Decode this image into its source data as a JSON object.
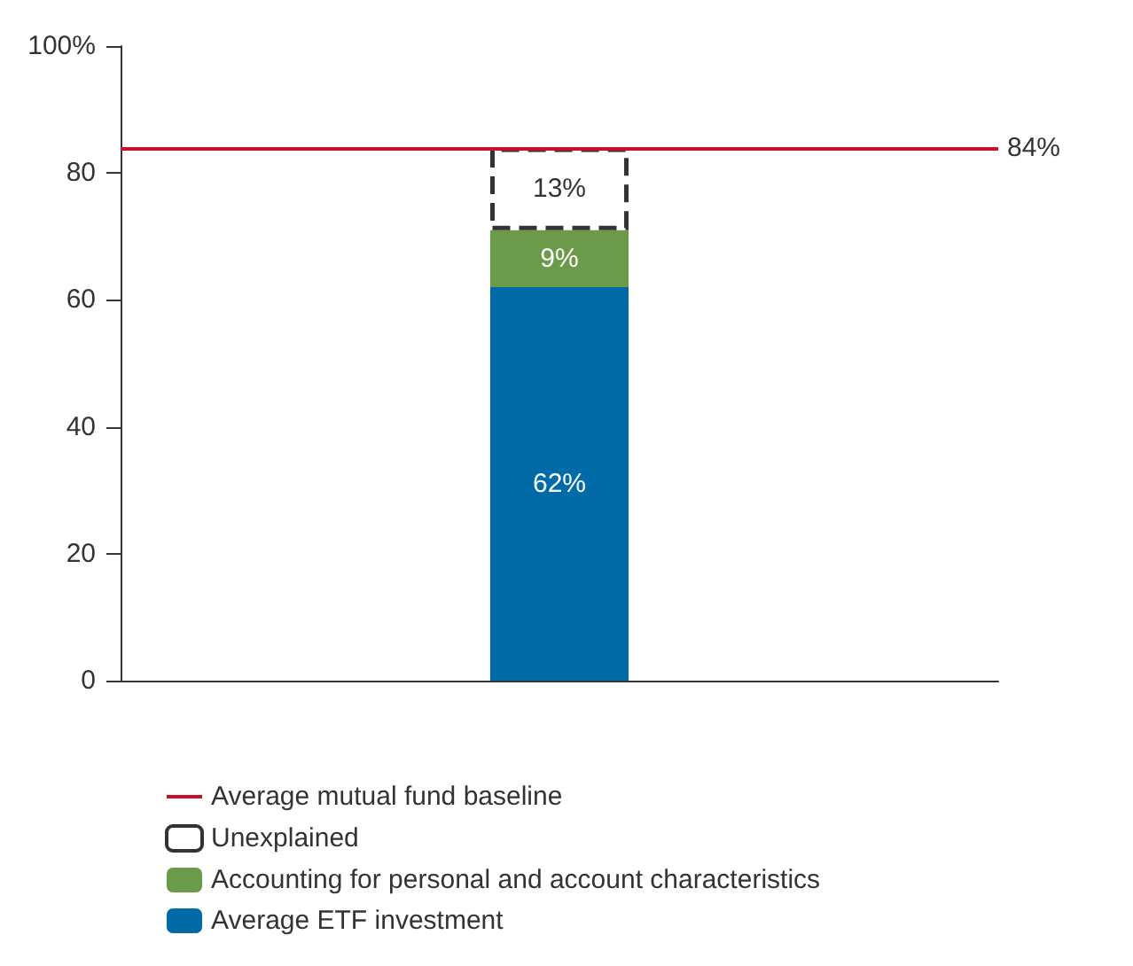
{
  "chart_data": {
    "type": "bar",
    "stacked": true,
    "categories": [
      null
    ],
    "series": [
      {
        "name": "Average ETF investment",
        "color": "#006ba6",
        "values": [
          62
        ],
        "value_labels": [
          "62%"
        ]
      },
      {
        "name": "Accounting for personal and account characteristics",
        "color": "#6a9a4a",
        "values": [
          9
        ],
        "value_labels": [
          "9%"
        ]
      },
      {
        "name": "Unexplained",
        "color": "#ffffff",
        "line_style": "dashed",
        "values": [
          13
        ],
        "value_labels": [
          "13%"
        ]
      }
    ],
    "ylim": [
      0,
      100
    ],
    "yticks": [
      0,
      20,
      40,
      60,
      80,
      {
        "value": 100,
        "label": "100%"
      }
    ],
    "ref_lines": [
      {
        "axis": "y",
        "value": 84,
        "label": "Average mutual fund baseline",
        "color": "#c8102e"
      }
    ],
    "annotations": [
      "84%"
    ],
    "grid": false,
    "legend": "bottom left"
  }
}
